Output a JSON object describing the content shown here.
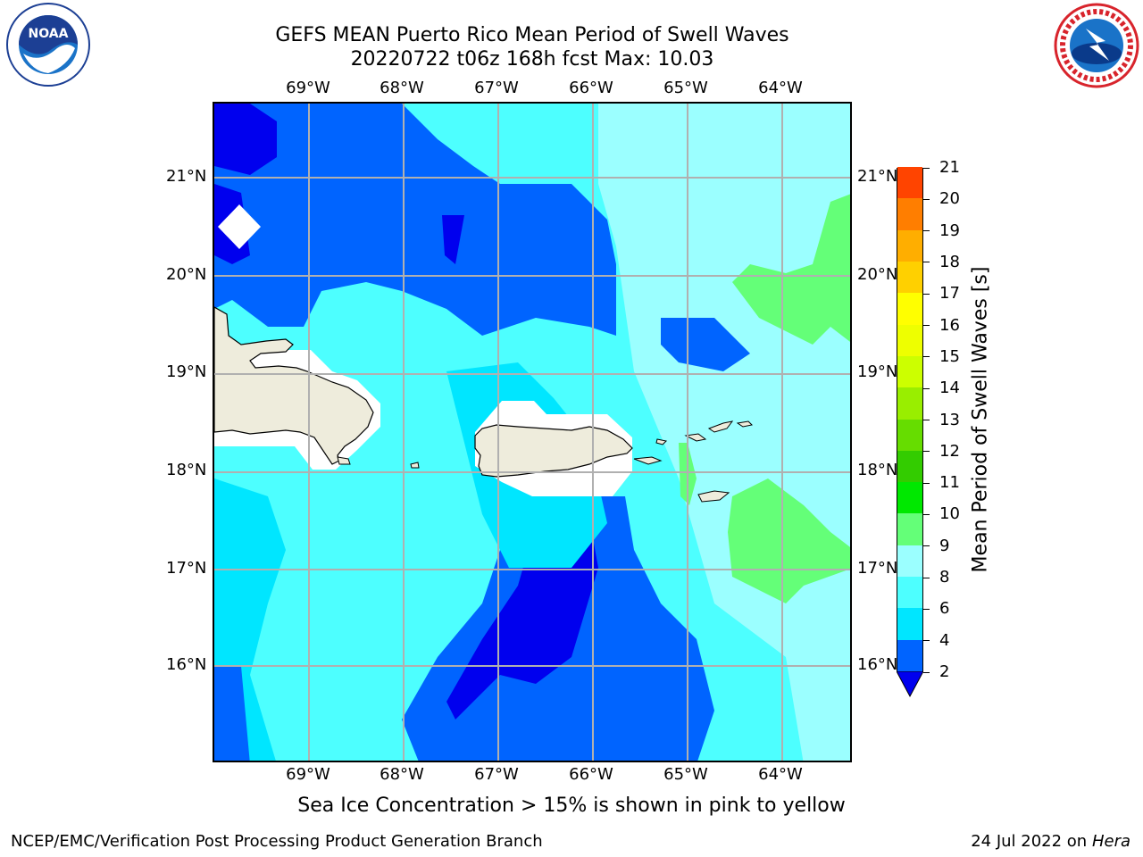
{
  "title": {
    "line1": "GEFS MEAN Puerto Rico Mean Period of Swell Waves",
    "line2": "20220722 t06z 168h fcst   Max: 10.03"
  },
  "map": {
    "lon_labels": [
      "69°W",
      "68°W",
      "67°W",
      "66°W",
      "65°W",
      "64°W"
    ],
    "lat_labels": [
      "21°N",
      "20°N",
      "19°N",
      "18°N",
      "17°N",
      "16°N"
    ],
    "colors": {
      "land": "#eeecdc",
      "grid": "#b0b0b0",
      "coast": "#000000"
    }
  },
  "colorbar": {
    "title": "Mean Period of Swell Waves [s]",
    "levels": [
      "2",
      "4",
      "6",
      "8",
      "9",
      "10",
      "11",
      "12",
      "13",
      "14",
      "15",
      "16",
      "17",
      "18",
      "19",
      "20",
      "21"
    ],
    "colors": [
      "#0064ff",
      "#00e6ff",
      "#4dffff",
      "#9bffff",
      "#64ff78",
      "#00e800",
      "#33cc00",
      "#66dd00",
      "#99ee00",
      "#ccff00",
      "#eeff00",
      "#ffff00",
      "#ffd000",
      "#ffae00",
      "#ff7e00",
      "#ff4400",
      "#ff0000"
    ],
    "under_color": "#0000ee"
  },
  "note": "Sea Ice Concentration > 15% is shown in pink to yellow",
  "footer": {
    "left": "NCEP/EMC/Verification Post Processing Product Generation Branch",
    "date": "24 Jul 2022 on ",
    "machine": "Hera"
  }
}
